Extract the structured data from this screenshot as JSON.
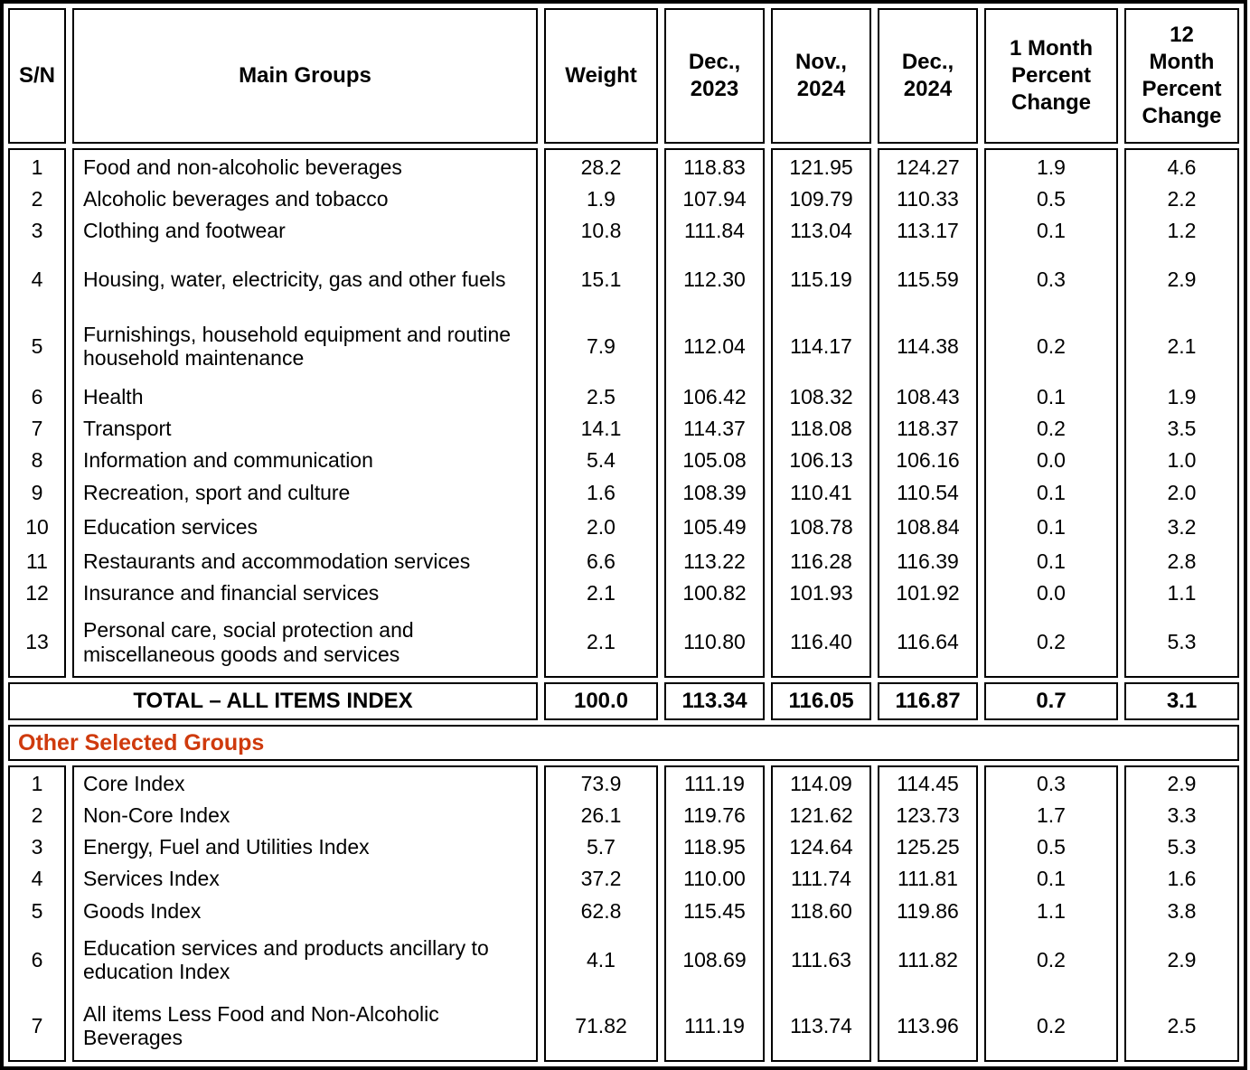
{
  "colors": {
    "section_title": "#cf3a0d",
    "border": "#000000",
    "text": "#000000",
    "background": "#ffffff"
  },
  "table": {
    "headers": [
      "S/N",
      "Main Groups",
      "Weight",
      "Dec.,\n2023",
      "Nov.,\n2024",
      "Dec.,\n2024",
      "1 Month\nPercent\nChange",
      "12\nMonth\nPercent\nChange"
    ],
    "main_rows": [
      {
        "sn": "1",
        "name": "Food and non-alcoholic beverages",
        "weight": "28.2",
        "dec23": "118.83",
        "nov24": "121.95",
        "dec24": "124.27",
        "chg1m": "1.9",
        "chg12m": "4.6"
      },
      {
        "sn": "2",
        "name": "Alcoholic beverages and tobacco",
        "weight": "1.9",
        "dec23": "107.94",
        "nov24": "109.79",
        "dec24": "110.33",
        "chg1m": "0.5",
        "chg12m": "2.2"
      },
      {
        "sn": "3",
        "name": "Clothing and footwear",
        "weight": "10.8",
        "dec23": "111.84",
        "nov24": "113.04",
        "dec24": "113.17",
        "chg1m": "0.1",
        "chg12m": "1.2"
      },
      {
        "sn": "4",
        "name": "Housing, water, electricity, gas and other fuels",
        "weight": "15.1",
        "dec23": "112.30",
        "nov24": "115.19",
        "dec24": "115.59",
        "chg1m": "0.3",
        "chg12m": "2.9"
      },
      {
        "sn": "5",
        "name": "Furnishings, household equipment and routine household maintenance",
        "weight": "7.9",
        "dec23": "112.04",
        "nov24": "114.17",
        "dec24": "114.38",
        "chg1m": "0.2",
        "chg12m": "2.1"
      },
      {
        "sn": "6",
        "name": "Health",
        "weight": "2.5",
        "dec23": "106.42",
        "nov24": "108.32",
        "dec24": "108.43",
        "chg1m": "0.1",
        "chg12m": "1.9"
      },
      {
        "sn": "7",
        "name": "Transport",
        "weight": "14.1",
        "dec23": "114.37",
        "nov24": "118.08",
        "dec24": "118.37",
        "chg1m": "0.2",
        "chg12m": "3.5"
      },
      {
        "sn": "8",
        "name": "Information and communication",
        "weight": "5.4",
        "dec23": "105.08",
        "nov24": "106.13",
        "dec24": "106.16",
        "chg1m": "0.0",
        "chg12m": "1.0"
      },
      {
        "sn": "9",
        "name": "Recreation, sport and culture",
        "weight": "1.6",
        "dec23": "108.39",
        "nov24": "110.41",
        "dec24": "110.54",
        "chg1m": "0.1",
        "chg12m": "2.0"
      },
      {
        "sn": "10",
        "name": "Education services",
        "weight": "2.0",
        "dec23": "105.49",
        "nov24": "108.78",
        "dec24": "108.84",
        "chg1m": "0.1",
        "chg12m": "3.2"
      },
      {
        "sn": "11",
        "name": "Restaurants and accommodation services",
        "weight": "6.6",
        "dec23": "113.22",
        "nov24": "116.28",
        "dec24": "116.39",
        "chg1m": "0.1",
        "chg12m": "2.8"
      },
      {
        "sn": "12",
        "name": "Insurance and financial services",
        "weight": "2.1",
        "dec23": "100.82",
        "nov24": "101.93",
        "dec24": "101.92",
        "chg1m": "0.0",
        "chg12m": "1.1"
      },
      {
        "sn": "13",
        "name": "Personal care, social protection and miscellaneous goods and services",
        "weight": "2.1",
        "dec23": "110.80",
        "nov24": "116.40",
        "dec24": "116.64",
        "chg1m": "0.2",
        "chg12m": "5.3"
      }
    ],
    "total_row": {
      "label": "TOTAL – ALL ITEMS INDEX",
      "weight": "100.0",
      "dec23": "113.34",
      "nov24": "116.05",
      "dec24": "116.87",
      "chg1m": "0.7",
      "chg12m": "3.1"
    },
    "section2_title": "Other Selected Groups",
    "other_rows": [
      {
        "sn": "1",
        "name": "Core Index",
        "weight": "73.9",
        "dec23": "111.19",
        "nov24": "114.09",
        "dec24": "114.45",
        "chg1m": "0.3",
        "chg12m": "2.9"
      },
      {
        "sn": "2",
        "name": "Non-Core Index",
        "weight": "26.1",
        "dec23": "119.76",
        "nov24": "121.62",
        "dec24": "123.73",
        "chg1m": "1.7",
        "chg12m": "3.3"
      },
      {
        "sn": "3",
        "name": "Energy, Fuel and Utilities Index",
        "weight": "5.7",
        "dec23": "118.95",
        "nov24": "124.64",
        "dec24": "125.25",
        "chg1m": "0.5",
        "chg12m": "5.3"
      },
      {
        "sn": "4",
        "name": "Services Index",
        "weight": "37.2",
        "dec23": "110.00",
        "nov24": "111.74",
        "dec24": "111.81",
        "chg1m": "0.1",
        "chg12m": "1.6"
      },
      {
        "sn": "5",
        "name": "Goods Index",
        "weight": "62.8",
        "dec23": "115.45",
        "nov24": "118.60",
        "dec24": "119.86",
        "chg1m": "1.1",
        "chg12m": "3.8"
      },
      {
        "sn": "6",
        "name": "Education services and products ancillary to education Index",
        "weight": "4.1",
        "dec23": "108.69",
        "nov24": "111.63",
        "dec24": "111.82",
        "chg1m": "0.2",
        "chg12m": "2.9"
      },
      {
        "sn": "7",
        "name": "All items Less Food and Non-Alcoholic Beverages",
        "weight": "71.82",
        "dec23": "111.19",
        "nov24": "113.74",
        "dec24": "113.96",
        "chg1m": "0.2",
        "chg12m": "2.5"
      }
    ]
  }
}
